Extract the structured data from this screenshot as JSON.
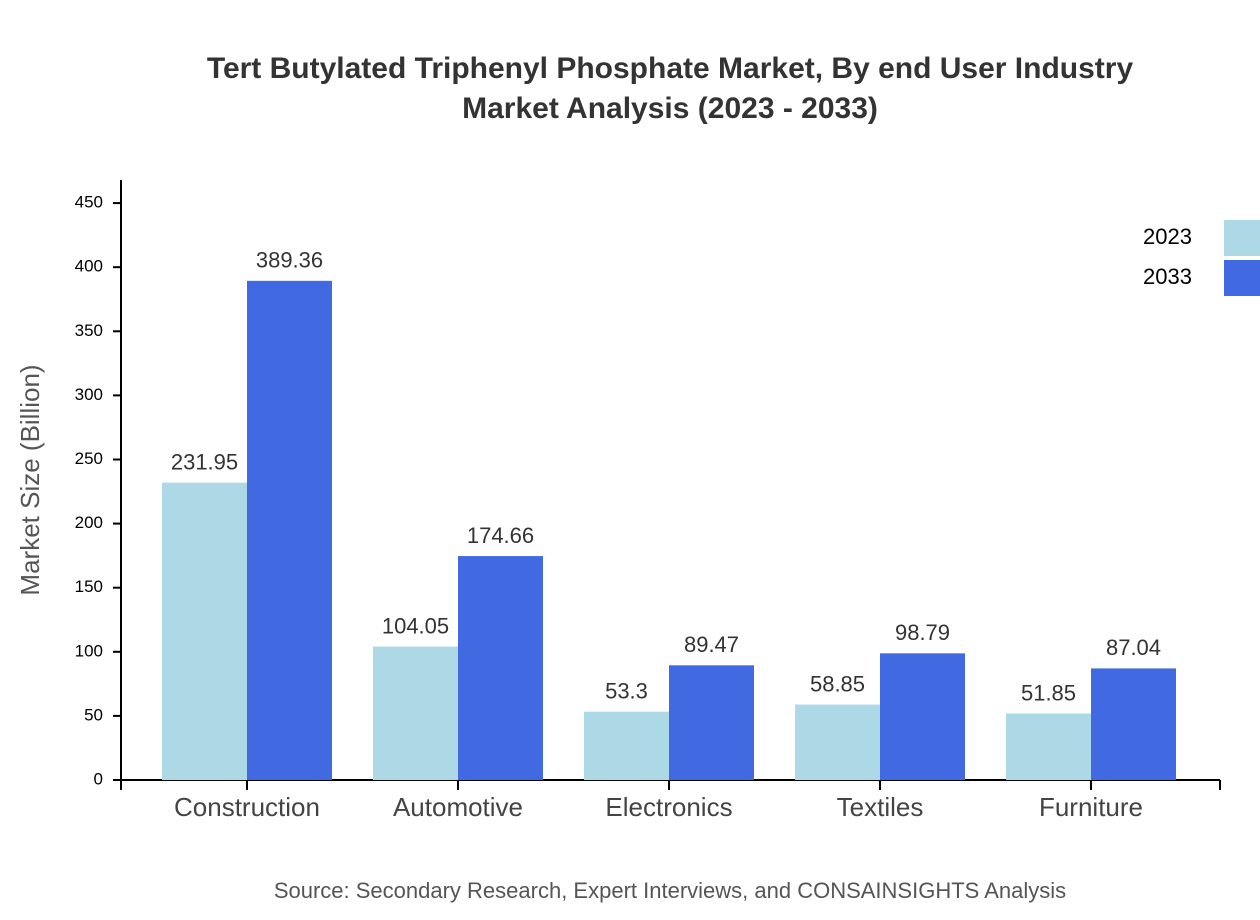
{
  "chart_data": {
    "type": "bar",
    "title": "Tert Butylated Triphenyl Phosphate Market, By end User Industry",
    "subtitle": "Market Analysis (2023 - 2033)",
    "y_label": "Market Size (Billion)",
    "source": "Source: Secondary Research, Expert Interviews, and CONSAINSIGHTS Analysis",
    "categories": [
      "Construction",
      "Automotive",
      "Electronics",
      "Textiles",
      "Furniture"
    ],
    "series": [
      {
        "name": "2023",
        "color": "#add8e6",
        "values": [
          231.95,
          104.05,
          53.3,
          58.85,
          51.85
        ]
      },
      {
        "name": "2033",
        "color": "#4169e1",
        "values": [
          389.36,
          174.66,
          89.47,
          98.79,
          87.04
        ]
      }
    ],
    "ylim": [
      0,
      468
    ],
    "yticks": [
      0,
      50,
      100,
      150,
      200,
      250,
      300,
      350,
      400,
      450
    ],
    "legend": "top-right"
  }
}
